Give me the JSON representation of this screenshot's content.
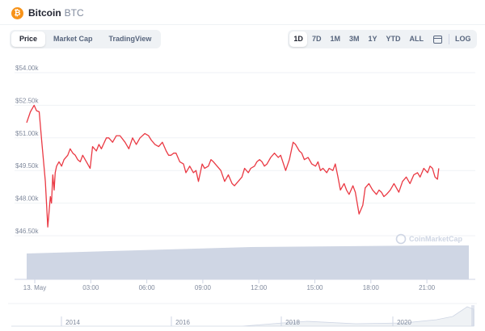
{
  "header": {
    "icon_glyph": "₿",
    "coin_name": "Bitcoin",
    "coin_symbol": "BTC"
  },
  "toolbar": {
    "tabs": [
      {
        "label": "Price",
        "active": true
      },
      {
        "label": "Market Cap",
        "active": false
      },
      {
        "label": "TradingView",
        "active": false
      }
    ],
    "ranges": [
      {
        "label": "1D",
        "active": true
      },
      {
        "label": "7D"
      },
      {
        "label": "1M"
      },
      {
        "label": "3M"
      },
      {
        "label": "1Y"
      },
      {
        "label": "YTD"
      },
      {
        "label": "ALL"
      }
    ],
    "calendar_icon": "calendar-icon",
    "log_label": "LOG"
  },
  "watermark": "CoinMarketCap",
  "colors": {
    "price_line": "#ea3943",
    "volume": "#cfd6e4",
    "brand": "#f7931a"
  },
  "chart_data": {
    "type": "line",
    "title": "",
    "xlabel": "",
    "ylabel": "",
    "ylim": [
      46500,
      54000
    ],
    "yticks": [
      "$54.00k",
      "$52.50k",
      "$51.00k",
      "$49.50k",
      "$48.00k",
      "$46.50k"
    ],
    "xticks": [
      "13. May",
      "03:00",
      "06:00",
      "09:00",
      "12:00",
      "15:00",
      "18:00",
      "21:00"
    ],
    "x_unit": "hours since 00:00 13 May",
    "series": [
      {
        "x": [
          0.0,
          0.2,
          0.4,
          0.53,
          0.67,
          0.8,
          1.0,
          1.13,
          1.27,
          1.33,
          1.4,
          1.47,
          1.53,
          1.6,
          1.73,
          1.87,
          2.0,
          2.2,
          2.33,
          2.47,
          2.6,
          2.73,
          2.87,
          3.0,
          3.2,
          3.4,
          3.53,
          3.73,
          3.87,
          4.0,
          4.27,
          4.4,
          4.6,
          4.8,
          5.0,
          5.27,
          5.47,
          5.67,
          5.87,
          6.07,
          6.33,
          6.53,
          6.67,
          6.87,
          7.07,
          7.27,
          7.47,
          7.6,
          7.73,
          7.87,
          8.0,
          8.2,
          8.4,
          8.53,
          8.73,
          8.93,
          9.07,
          9.2,
          9.4,
          9.53,
          9.73,
          9.87,
          10.0,
          10.2,
          10.4,
          10.6,
          10.8,
          11.0,
          11.13,
          11.33,
          11.53,
          11.67,
          11.87,
          12.0,
          12.2,
          12.33,
          12.47,
          12.6,
          12.73,
          12.87,
          13.07,
          13.27,
          13.47,
          13.6,
          13.87,
          14.07,
          14.27,
          14.4,
          14.6,
          14.73,
          14.87,
          15.07,
          15.27,
          15.47,
          15.6,
          15.73,
          15.87,
          16.07,
          16.2,
          16.4,
          16.53,
          16.67,
          16.8,
          17.0,
          17.13,
          17.27,
          17.47,
          17.6,
          17.8,
          18.0,
          18.13,
          18.33,
          18.53,
          18.73,
          18.87,
          19.0,
          19.13,
          19.27,
          19.47,
          19.67,
          19.8,
          19.93,
          20.13,
          20.33,
          20.53,
          20.73,
          20.93,
          21.07,
          21.27,
          21.47,
          21.6,
          21.73,
          21.87,
          22.0,
          22.07
        ],
        "values": [
          51700,
          52200,
          52500,
          52250,
          52200,
          50900,
          49000,
          46900,
          48300,
          48000,
          49300,
          48600,
          49400,
          49700,
          49900,
          49700,
          50000,
          50200,
          50500,
          50300,
          50200,
          50000,
          49900,
          50200,
          49900,
          49600,
          50600,
          50400,
          50700,
          50500,
          51000,
          51000,
          50800,
          51100,
          51100,
          50800,
          50500,
          51000,
          50700,
          51000,
          51200,
          51100,
          50900,
          50700,
          50600,
          50800,
          50400,
          50200,
          50200,
          50300,
          50300,
          49900,
          49800,
          49400,
          49700,
          49400,
          49500,
          49000,
          49800,
          49600,
          49700,
          50000,
          49900,
          49700,
          49500,
          49000,
          49300,
          48900,
          48800,
          49000,
          49200,
          49600,
          49400,
          49600,
          49700,
          49900,
          50000,
          49900,
          49700,
          49800,
          50100,
          50300,
          50100,
          50200,
          49500,
          50000,
          50800,
          50700,
          50400,
          50300,
          50000,
          50100,
          49800,
          49700,
          49900,
          49500,
          49600,
          49400,
          49600,
          49500,
          49800,
          49200,
          48600,
          48900,
          48600,
          48400,
          48800,
          48500,
          47500,
          47900,
          48700,
          48900,
          48600,
          48400,
          48600,
          48500,
          48300,
          48400,
          48600,
          48900,
          48700,
          48500,
          49000,
          49200,
          48900,
          49300,
          49400,
          49200,
          49600,
          49400,
          49700,
          49600,
          49200,
          49100,
          49600
        ]
      }
    ],
    "volume": {
      "y_top": 49520,
      "y_bottom": 49300
    },
    "navigator": {
      "ticks": [
        "2014",
        "2016",
        "2018",
        "2020"
      ]
    }
  }
}
